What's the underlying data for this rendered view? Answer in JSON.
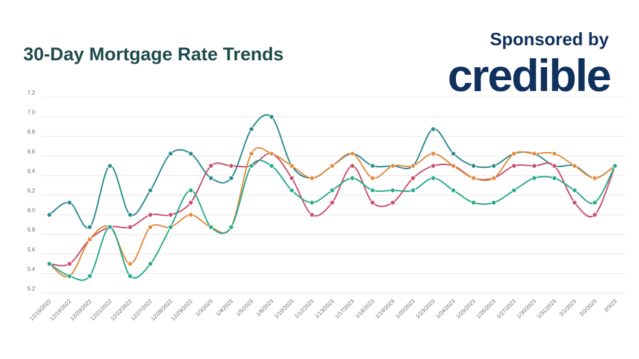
{
  "header": {
    "title": "30-Day Mortgage Rate Trends",
    "sponsor_label": "Sponsored by",
    "brand": "credible"
  },
  "chart_data": {
    "type": "line",
    "title": "30-Day Mortgage Rate Trends",
    "xlabel": "",
    "ylabel": "",
    "ylim": [
      5.2,
      7.2
    ],
    "yticks": [
      "5.2",
      "5.4",
      "5.6",
      "5.8",
      "6.0",
      "6.2",
      "6.4",
      "6.6",
      "6.8",
      "7.0",
      "7.2"
    ],
    "grid": true,
    "legend": "none",
    "categories": [
      "12/16/2022",
      "12/19/2022",
      "12/20/2022",
      "12/21/2022",
      "12/22/2022",
      "12/27/2022",
      "12/28/2022",
      "12/29/2022",
      "1/3/2023",
      "1/4/2023",
      "1/5/2023",
      "1/6/2023",
      "1/10/2023",
      "1/12/2023",
      "1/13/2023",
      "1/17/2023",
      "1/18/2023",
      "1/19/2023",
      "1/20/2023",
      "1/23/2023",
      "1/24/2023",
      "1/25/2023",
      "1/26/2023",
      "1/27/2023",
      "1/30/2023",
      "1/31/2023",
      "2/1/2023",
      "2/2/2023",
      "2/3/23"
    ],
    "series": [
      {
        "color": "#2b8a8e",
        "values": [
          6.0,
          6.125,
          5.875,
          6.5,
          6.0,
          6.25,
          6.625,
          6.625,
          6.375,
          6.375,
          6.875,
          7.0,
          6.5,
          6.375,
          6.5,
          6.625,
          6.5,
          6.5,
          6.5,
          6.875,
          6.625,
          6.5,
          6.5,
          6.625,
          6.625,
          6.5,
          6.5,
          6.375,
          6.5
        ]
      },
      {
        "color": "#c8506b",
        "values": [
          5.5,
          5.5,
          5.75,
          5.875,
          5.875,
          6.0,
          6.0,
          6.125,
          6.5,
          6.5,
          6.5,
          6.625,
          6.375,
          6.0,
          6.125,
          6.5,
          6.125,
          6.125,
          6.375,
          6.5,
          6.5,
          6.375,
          6.375,
          6.5,
          6.5,
          6.5,
          6.125,
          6.0,
          6.5
        ]
      },
      {
        "color": "#e38b3d",
        "values": [
          5.5,
          5.375,
          5.75,
          5.875,
          5.5,
          5.875,
          5.875,
          6.0,
          5.875,
          5.875,
          6.625,
          6.625,
          6.5,
          6.375,
          6.5,
          6.625,
          6.375,
          6.5,
          6.5,
          6.625,
          6.5,
          6.375,
          6.375,
          6.625,
          6.625,
          6.625,
          6.5,
          6.375,
          6.5
        ]
      },
      {
        "color": "#27a98a",
        "values": [
          5.5,
          5.375,
          5.375,
          5.875,
          5.375,
          5.5,
          5.875,
          6.25,
          5.875,
          5.875,
          6.5,
          6.5,
          6.25,
          6.125,
          6.25,
          6.375,
          6.25,
          6.25,
          6.25,
          6.375,
          6.25,
          6.125,
          6.125,
          6.25,
          6.375,
          6.375,
          6.25,
          6.125,
          6.5
        ]
      }
    ]
  }
}
